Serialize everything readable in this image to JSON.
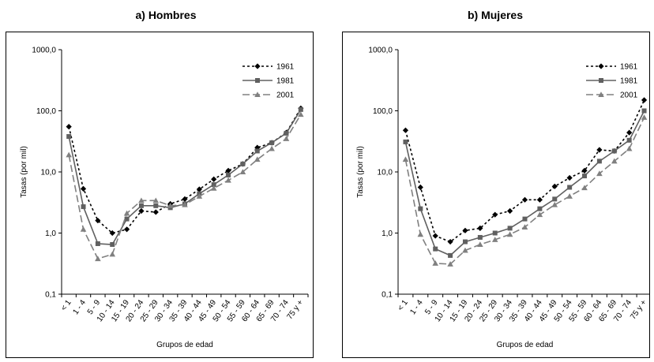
{
  "colors": {
    "s1961": "#000000",
    "s1981": "#606060",
    "s2001": "#808080",
    "frame": "#000000"
  },
  "chart_data": [
    {
      "type": "line",
      "title": "a) Hombres",
      "xlabel": "Grupos de edad",
      "ylabel": "Tasas (por mil)",
      "yscale": "log",
      "ylim": [
        0.1,
        1000
      ],
      "yticks": [
        "0,1",
        "1,0",
        "10,0",
        "100,0",
        "1000,0"
      ],
      "grid": false,
      "legend": "top-right",
      "categories": [
        "< 1",
        "1 - 4",
        "5 - 9",
        "10 - 14",
        "15 - 19",
        "20 - 24",
        "25 - 29",
        "30 - 34",
        "35 - 39",
        "40 - 44",
        "45 - 49",
        "50 - 54",
        "55 - 59",
        "60 - 64",
        "65 - 69",
        "70 - 74",
        "75 y +"
      ],
      "series": [
        {
          "name": "1961",
          "values": [
            55,
            5.3,
            1.6,
            1.0,
            1.15,
            2.3,
            2.2,
            3.0,
            3.6,
            5.2,
            7.6,
            10.5,
            13.5,
            25,
            30,
            44,
            110
          ]
        },
        {
          "name": "1981",
          "values": [
            38,
            2.7,
            0.67,
            0.65,
            1.7,
            2.8,
            2.8,
            2.6,
            3.0,
            4.4,
            6.2,
            8.9,
            13.5,
            22,
            30,
            43,
            105
          ]
        },
        {
          "name": "2001",
          "values": [
            19,
            1.15,
            0.38,
            0.45,
            2.1,
            3.4,
            3.4,
            2.8,
            2.9,
            4.0,
            5.4,
            7.3,
            10,
            16,
            24,
            35,
            87
          ]
        }
      ]
    },
    {
      "type": "line",
      "title": "b) Mujeres",
      "xlabel": "Grupos de edad",
      "ylabel": "Tasas (por mil)",
      "yscale": "log",
      "ylim": [
        0.1,
        1000
      ],
      "yticks": [
        "0,1",
        "1,0",
        "10,0",
        "100,0",
        "1000,0"
      ],
      "grid": false,
      "legend": "top-right",
      "categories": [
        "< 1",
        "1 - 4",
        "5 - 9",
        "10 - 14",
        "15 - 19",
        "20 - 24",
        "25 - 29",
        "30 - 34",
        "35 - 39",
        "40 - 44",
        "45 - 49",
        "50 - 54",
        "55 - 59",
        "60 - 64",
        "65 - 69",
        "70 - 74",
        "75 y +"
      ],
      "series": [
        {
          "name": "1961",
          "values": [
            48,
            5.6,
            0.9,
            0.72,
            1.1,
            1.2,
            2.0,
            2.3,
            3.5,
            3.5,
            5.8,
            8.0,
            10.5,
            23,
            22,
            44,
            150
          ]
        },
        {
          "name": "1981",
          "values": [
            31,
            2.5,
            0.55,
            0.43,
            0.72,
            0.85,
            1.0,
            1.2,
            1.7,
            2.5,
            3.6,
            5.6,
            8.6,
            15,
            22,
            33,
            100
          ]
        },
        {
          "name": "2001",
          "values": [
            16,
            0.95,
            0.32,
            0.31,
            0.52,
            0.65,
            0.78,
            0.95,
            1.25,
            2.0,
            2.9,
            4.0,
            5.5,
            9.4,
            15,
            24,
            78
          ]
        }
      ]
    }
  ]
}
